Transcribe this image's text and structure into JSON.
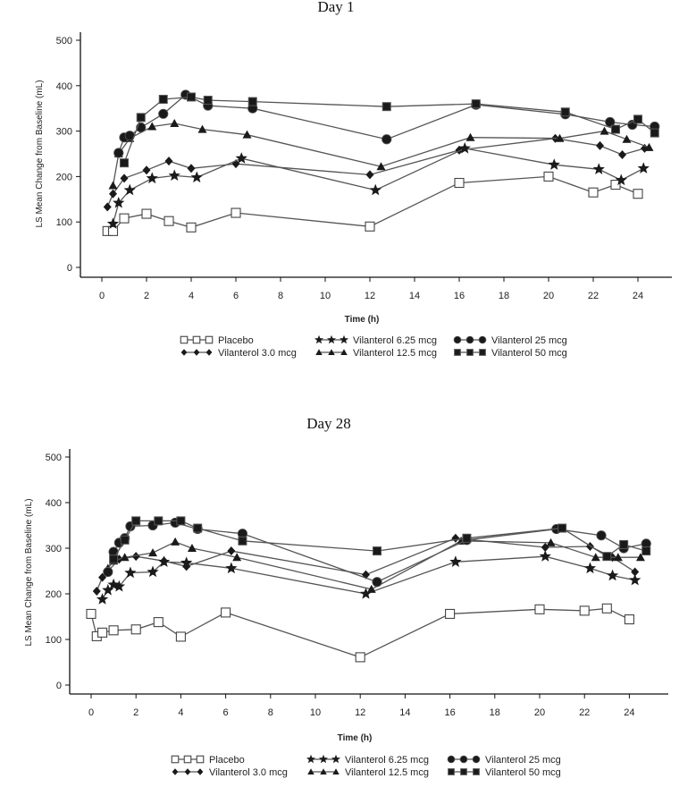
{
  "chart_data": [
    {
      "type": "line",
      "title": "Day 1",
      "xlabel": "Time (h)",
      "ylabel": "LS Mean Change from Baseline (mL)",
      "xlim": [
        -1,
        25.5
      ],
      "ylim": [
        0,
        500
      ],
      "xticks": [
        0,
        2,
        4,
        6,
        8,
        10,
        12,
        14,
        16,
        18,
        20,
        22,
        24
      ],
      "yticks": [
        0,
        100,
        200,
        300,
        400,
        500
      ],
      "grid": false,
      "legend_position": "bottom",
      "series": [
        {
          "name": "Placebo",
          "marker": "square-open",
          "x": [
            0.25,
            0.5,
            1,
            2,
            3,
            4,
            6,
            12,
            16,
            20,
            22,
            23,
            24
          ],
          "y": [
            80,
            80,
            108,
            118,
            102,
            88,
            120,
            90,
            186,
            200,
            165,
            182,
            162
          ]
        },
        {
          "name": "Vilanterol 3.0 mcg",
          "marker": "diamond",
          "x": [
            0.25,
            0.5,
            1,
            2,
            3,
            4,
            6,
            12,
            16,
            20.3,
            22.3,
            23.3,
            24.3
          ],
          "y": [
            133,
            162,
            196,
            214,
            234,
            218,
            228,
            204,
            258,
            284,
            268,
            248,
            262
          ]
        },
        {
          "name": "Vilanterol 6.25 mcg",
          "marker": "star",
          "x": [
            0.5,
            0.75,
            1.25,
            2.25,
            3.25,
            4.25,
            6.25,
            12.25,
            16.25,
            20.25,
            22.25,
            23.25,
            24.25
          ],
          "y": [
            96,
            142,
            170,
            196,
            202,
            198,
            240,
            170,
            262,
            226,
            216,
            192,
            218
          ]
        },
        {
          "name": "Vilanterol 12.5 mcg",
          "marker": "triangle",
          "x": [
            0.5,
            0.75,
            1.25,
            2.25,
            3.25,
            4.5,
            6.5,
            12.5,
            16.5,
            20.5,
            22.5,
            23.5,
            24.5
          ],
          "y": [
            180,
            250,
            284,
            310,
            317,
            304,
            292,
            222,
            286,
            284,
            300,
            282,
            264
          ]
        },
        {
          "name": "Vilanterol 25 mcg",
          "marker": "circle",
          "x": [
            0.75,
            1,
            1.25,
            1.75,
            2.75,
            3.75,
            4.75,
            6.75,
            12.75,
            16.75,
            20.75,
            22.75,
            23.75,
            24.75
          ],
          "y": [
            252,
            286,
            290,
            308,
            338,
            380,
            356,
            350,
            282,
            358,
            337,
            320,
            314,
            310
          ]
        },
        {
          "name": "Vilanterol 50 mcg",
          "marker": "square",
          "x": [
            1,
            1.75,
            2.75,
            4,
            4.75,
            6.75,
            12.75,
            16.75,
            20.75,
            23,
            24,
            24.75
          ],
          "y": [
            230,
            330,
            370,
            375,
            368,
            365,
            354,
            360,
            342,
            304,
            326,
            296
          ]
        }
      ]
    },
    {
      "type": "line",
      "title": "Day 28",
      "xlabel": "Time (h)",
      "ylabel": "LS Mean Change from Baseline (mL)",
      "xlim": [
        -1,
        25.5
      ],
      "ylim": [
        0,
        500
      ],
      "xticks": [
        0,
        2,
        4,
        6,
        8,
        10,
        12,
        14,
        16,
        18,
        20,
        22,
        24
      ],
      "yticks": [
        0,
        100,
        200,
        300,
        400,
        500
      ],
      "grid": false,
      "legend_position": "bottom",
      "series": [
        {
          "name": "Placebo",
          "marker": "square-open",
          "x": [
            0,
            0.25,
            0.5,
            1,
            2,
            3,
            4,
            6,
            12,
            16,
            20,
            22,
            23,
            24
          ],
          "y": [
            156,
            107,
            115,
            120,
            122,
            138,
            106,
            159,
            61,
            156,
            166,
            163,
            168,
            144
          ]
        },
        {
          "name": "Vilanterol 3.0 mcg",
          "marker": "diamond",
          "x": [
            0.25,
            0.5,
            0.75,
            1.25,
            2,
            3.25,
            4.25,
            6.25,
            12.25,
            16.25,
            20.25,
            22.25,
            23.25,
            24.25
          ],
          "y": [
            206,
            236,
            250,
            276,
            282,
            272,
            260,
            294,
            242,
            322,
            302,
            304,
            280,
            248
          ]
        },
        {
          "name": "Vilanterol 6.25 mcg",
          "marker": "star",
          "x": [
            0.5,
            0.75,
            1,
            1.25,
            1.75,
            2.75,
            3.25,
            4.25,
            6.25,
            12.25,
            16.25,
            20.25,
            22.25,
            23.25,
            24.25
          ],
          "y": [
            188,
            208,
            220,
            216,
            246,
            248,
            270,
            268,
            256,
            200,
            270,
            282,
            256,
            240,
            230
          ]
        },
        {
          "name": "Vilanterol 12.5 mcg",
          "marker": "triangle",
          "x": [
            0.75,
            1,
            1.5,
            2.75,
            3.75,
            4.5,
            6.5,
            12.5,
            16.5,
            20.5,
            22.5,
            23.5,
            24.5
          ],
          "y": [
            256,
            272,
            280,
            290,
            314,
            300,
            280,
            210,
            316,
            312,
            280,
            280,
            280
          ]
        },
        {
          "name": "Vilanterol 25 mcg",
          "marker": "circle",
          "x": [
            0.75,
            1,
            1.25,
            1.5,
            1.75,
            2.75,
            3.75,
            4.75,
            6.75,
            12.75,
            16.75,
            20.75,
            22.75,
            23.75,
            24.75
          ],
          "y": [
            248,
            292,
            312,
            322,
            348,
            350,
            356,
            342,
            332,
            226,
            318,
            342,
            328,
            300,
            310
          ]
        },
        {
          "name": "Vilanterol 50 mcg",
          "marker": "square",
          "x": [
            1,
            1.5,
            2,
            3,
            4,
            4.75,
            6.75,
            12.75,
            16.75,
            21,
            23,
            23.75,
            24.75
          ],
          "y": [
            276,
            318,
            360,
            360,
            360,
            344,
            316,
            294,
            322,
            344,
            282,
            308,
            294
          ]
        }
      ]
    }
  ],
  "legend": {
    "items": [
      "Placebo",
      "Vilanterol 3.0 mcg",
      "Vilanterol 6.25 mcg",
      "Vilanterol 12.5 mcg",
      "Vilanterol 25 mcg",
      "Vilanterol 50 mcg"
    ]
  },
  "colors": {
    "line": "#555555",
    "marker_fill": "#1a1a1a",
    "axis": "#111111"
  }
}
